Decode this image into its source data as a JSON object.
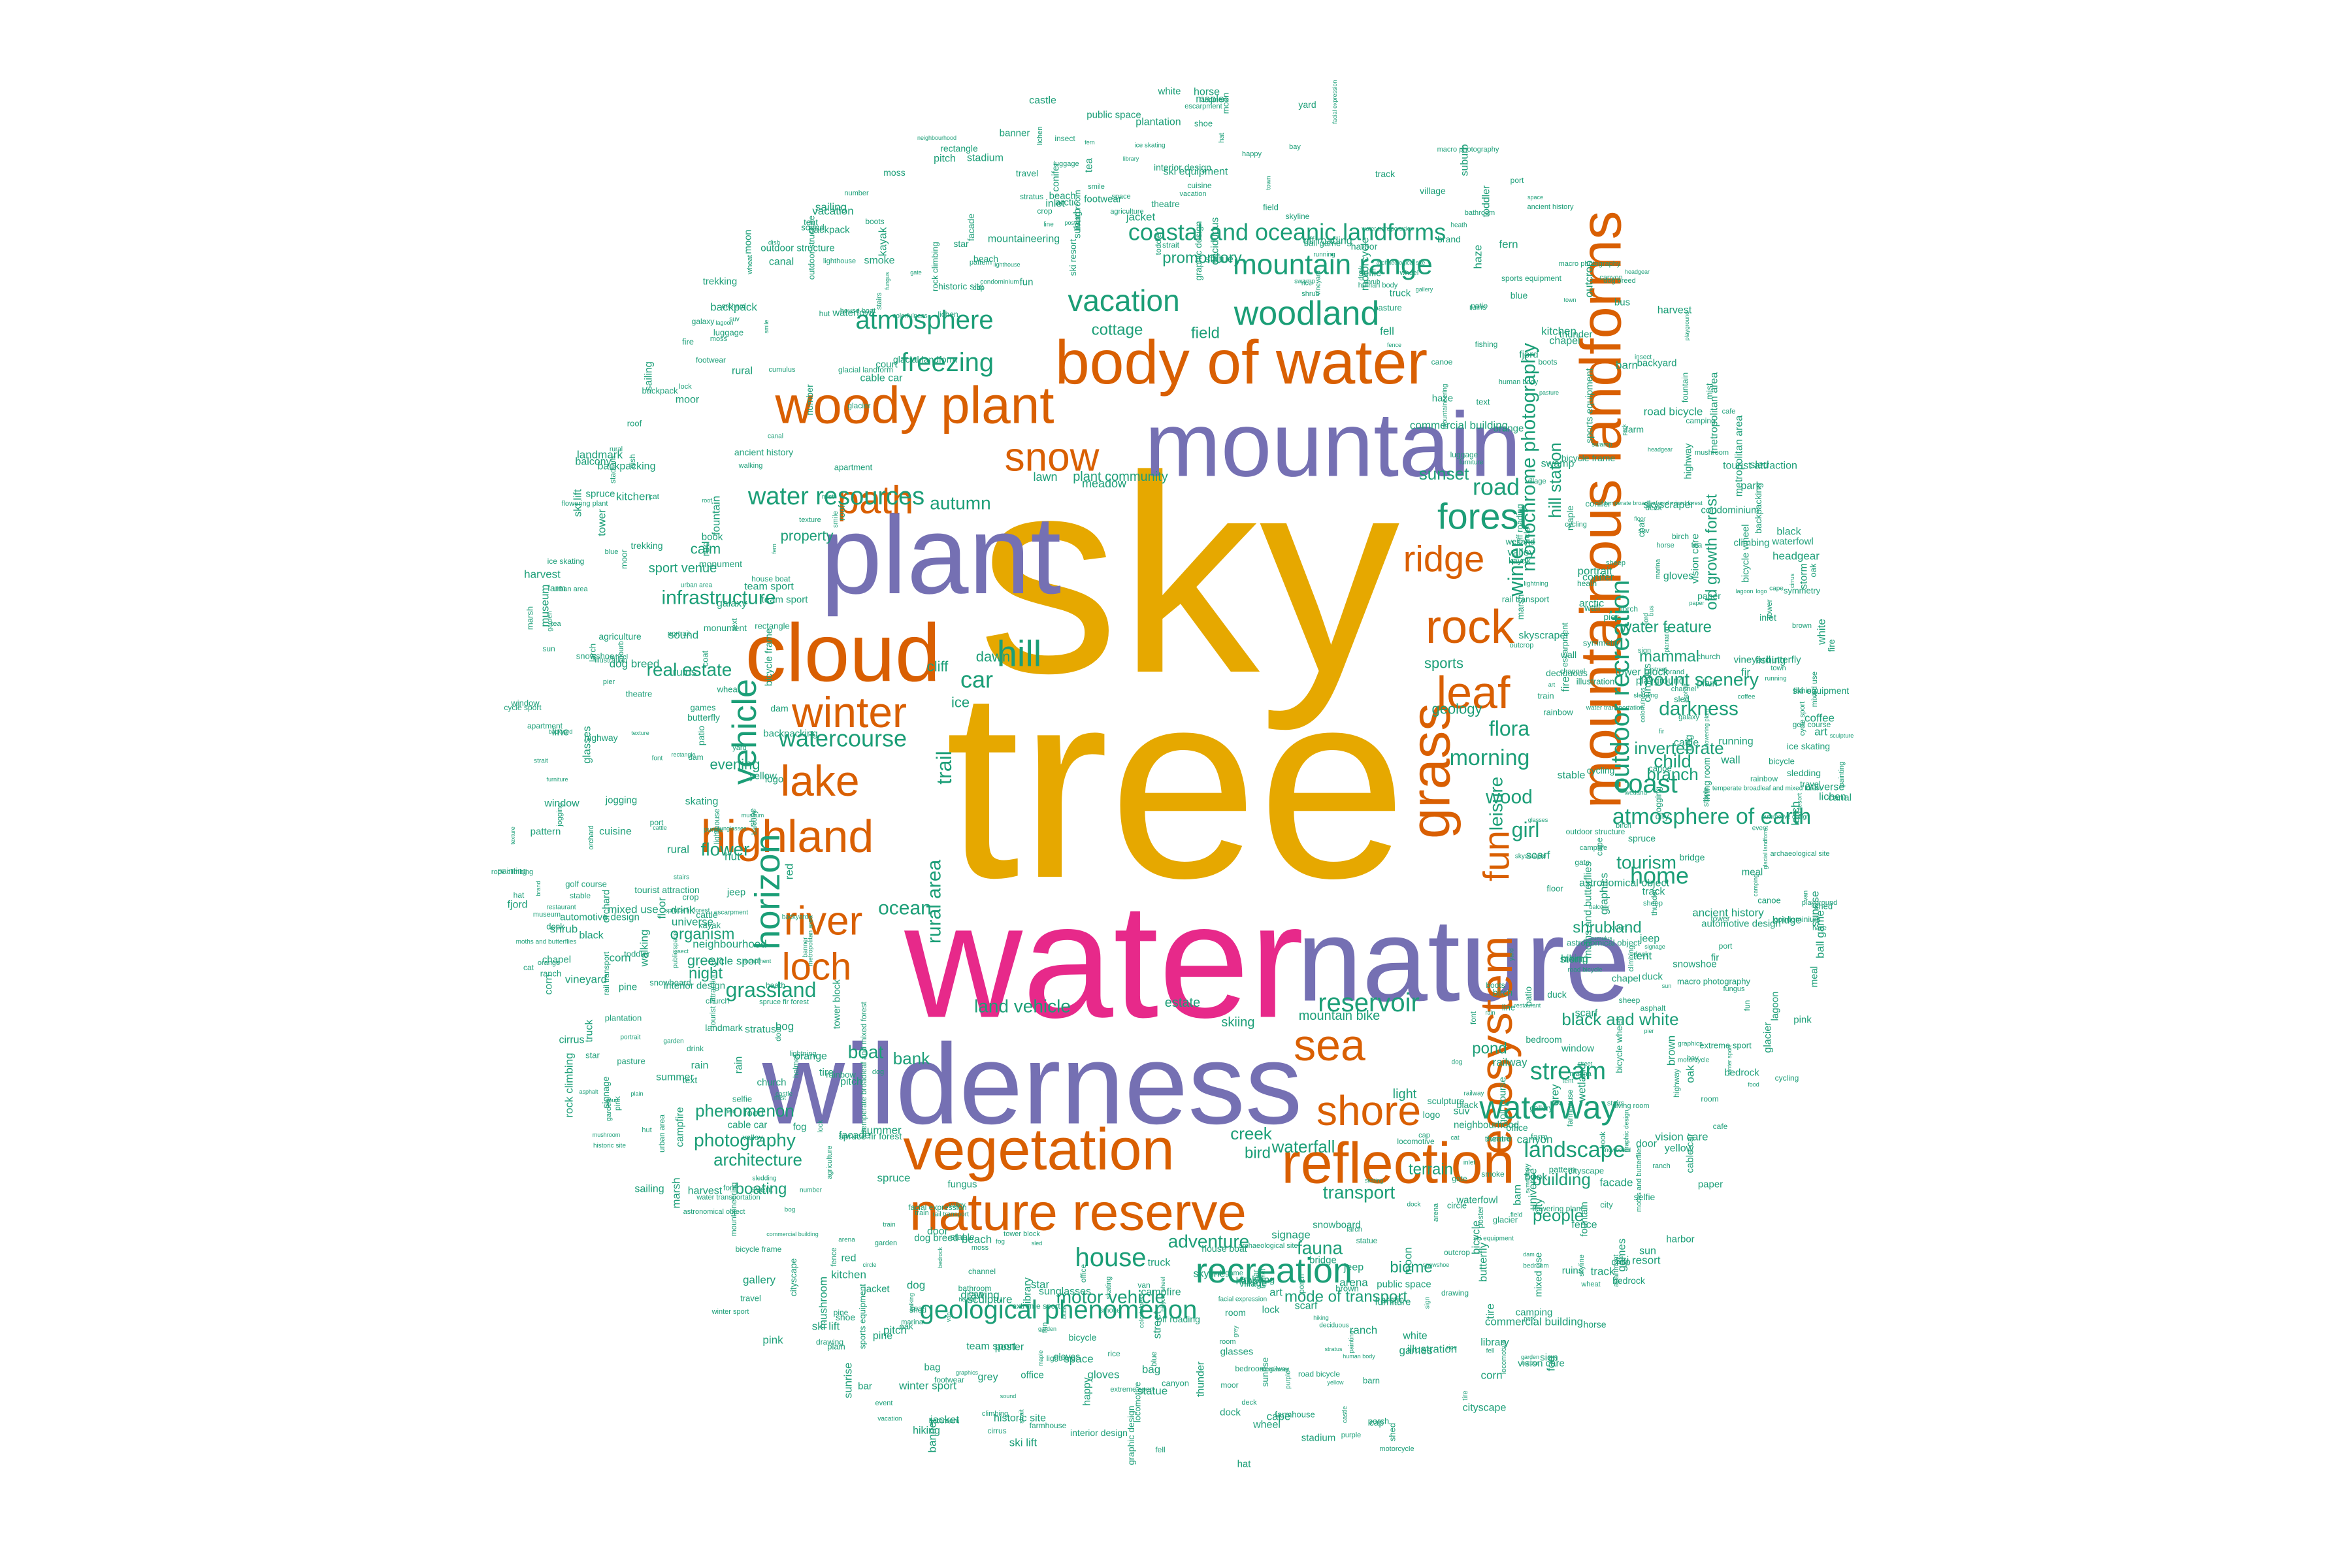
{
  "palette": {
    "gold": "#E6A800",
    "magenta": "#E7298A",
    "purple": "#7570B3",
    "orange": "#D95F02",
    "green": "#1B9E77"
  },
  "words": {
    "major": [
      {
        "text": "sky",
        "color": "gold"
      },
      {
        "text": "tree",
        "color": "gold"
      },
      {
        "text": "water",
        "color": "magenta"
      },
      {
        "text": "wilderness",
        "color": "purple"
      },
      {
        "text": "nature",
        "color": "purple"
      },
      {
        "text": "plant",
        "color": "purple"
      },
      {
        "text": "mountain",
        "color": "purple"
      },
      {
        "text": "cloud",
        "color": "orange"
      },
      {
        "text": "body of water",
        "color": "orange"
      },
      {
        "text": "woody plant",
        "color": "orange"
      },
      {
        "text": "mountainous landforms",
        "color": "orange"
      },
      {
        "text": "vegetation",
        "color": "orange"
      },
      {
        "text": "nature reserve",
        "color": "orange"
      },
      {
        "text": "reflection",
        "color": "orange"
      },
      {
        "text": "ecosystem",
        "color": "orange"
      },
      {
        "text": "grass",
        "color": "orange"
      },
      {
        "text": "highland",
        "color": "orange"
      },
      {
        "text": "lake",
        "color": "orange"
      },
      {
        "text": "winter",
        "color": "orange"
      },
      {
        "text": "river",
        "color": "orange"
      },
      {
        "text": "loch",
        "color": "orange"
      },
      {
        "text": "rock",
        "color": "orange"
      },
      {
        "text": "leaf",
        "color": "orange"
      },
      {
        "text": "sea",
        "color": "orange"
      },
      {
        "text": "shore",
        "color": "orange"
      },
      {
        "text": "snow",
        "color": "orange"
      },
      {
        "text": "path",
        "color": "orange"
      },
      {
        "text": "ridge",
        "color": "orange"
      },
      {
        "text": "fun",
        "color": "orange"
      }
    ],
    "medium": [
      "forest",
      "hill",
      "vehicle",
      "horizon",
      "woodland",
      "mountain range",
      "vacation",
      "atmosphere",
      "freezing",
      "recreation",
      "house",
      "geological phenomenon",
      "waterway",
      "reservoir",
      "stream",
      "outdoor recreation",
      "water resources",
      "watercourse",
      "car",
      "road",
      "coast",
      "atmosphere of earth",
      "coastal and oceanic landforms",
      "landscape",
      "home",
      "grassland",
      "winter",
      "morning",
      "flora",
      "wood",
      "girl",
      "leisure",
      "trail",
      "rural area",
      "ocean",
      "flower",
      "autumn",
      "infrastructure",
      "real estate",
      "photography",
      "transport",
      "fauna",
      "adventure",
      "motor vehicle",
      "creek",
      "waterfall",
      "building",
      "people",
      "tourism",
      "child",
      "branch",
      "darkness",
      "invertebrate",
      "mount scenery",
      "mammal",
      "water feature",
      "old growth forest",
      "hill station",
      "monochrome photography",
      "land vehicle",
      "boat",
      "bank",
      "phenomenon",
      "architecture",
      "boating",
      "organism",
      "green",
      "night",
      "sunset",
      "cottage",
      "field",
      "promontory",
      "mode of transport",
      "black and white",
      "shrubland",
      "biome",
      "pond",
      "terrain",
      "bird",
      "dawn",
      "ice",
      "cliff",
      "evening",
      "sports",
      "geology",
      "property",
      "calm",
      "sport venue",
      "light",
      "plant community",
      "meadow",
      "lawn",
      "estate",
      "skiing",
      "mountain bike",
      "soil"
    ],
    "small": [
      "temperate broadleaf and mixed forest",
      "sports equipment",
      "macro photography",
      "smile",
      "games",
      "neighbourhood",
      "outdoor structure",
      "facial expression",
      "glasses",
      "window",
      "road bicycle",
      "team sport",
      "human body",
      "arctic",
      "summer",
      "wetland",
      "sunrise",
      "interior design",
      "automotive design",
      "public space",
      "asphalt",
      "vision care",
      "sunglasses",
      "furniture",
      "garden",
      "toddler",
      "pasture",
      "plain",
      "headgear",
      "ball game",
      "cycle sport",
      "facade",
      "outcrop",
      "farmhouse",
      "water transportation",
      "city",
      "town",
      "street",
      "font",
      "event",
      "bridge",
      "highway",
      "tire",
      "wheel",
      "dog breed",
      "dog",
      "cat",
      "horse",
      "cattle",
      "sheep",
      "fishing",
      "camping",
      "hiking",
      "cycling",
      "sailing",
      "kayak",
      "canoe",
      "waterfowl",
      "duck",
      "insect",
      "butterfly",
      "moths and butterflies",
      "flowering plant",
      "shrub",
      "deciduous",
      "conifer",
      "spruce",
      "spruce fir forest",
      "fir",
      "pine",
      "maple",
      "oak",
      "birch",
      "larch",
      "moss",
      "fern",
      "lichen",
      "fungus",
      "mushroom",
      "bedrock",
      "escarpment",
      "canyon",
      "valley",
      "glacier",
      "glacial landform",
      "fell",
      "moor",
      "heath",
      "bog",
      "marsh",
      "swamp",
      "lagoon",
      "bay",
      "beach",
      "cape",
      "inlet",
      "fjord",
      "sound",
      "strait",
      "channel",
      "dam",
      "canal",
      "lock",
      "pier",
      "dock",
      "harbor",
      "marina",
      "port",
      "lighthouse",
      "tower",
      "castle",
      "church",
      "chapel",
      "ruins",
      "monument",
      "statue",
      "sculpture",
      "fountain",
      "park",
      "playground",
      "garden",
      "yard",
      "backyard",
      "patio",
      "deck",
      "porch",
      "balcony",
      "roof",
      "wall",
      "fence",
      "gate",
      "door",
      "stairs",
      "floor",
      "room",
      "kitchen",
      "bathroom",
      "bedroom",
      "living room",
      "office",
      "library",
      "museum",
      "gallery",
      "theatre",
      "stadium",
      "arena",
      "court",
      "track",
      "pitch",
      "golf course",
      "ski resort",
      "ski equipment",
      "snowboard",
      "sled",
      "winter sport",
      "extreme sport",
      "mountaineering",
      "climbing",
      "rock climbing",
      "backpacking",
      "trekking",
      "running",
      "walking",
      "jogging",
      "sledding",
      "skating",
      "ice skating",
      "snowshoe",
      "ski lift",
      "cable car",
      "train",
      "rail transport",
      "railway",
      "locomotive",
      "bus",
      "truck",
      "van",
      "jeep",
      "suv",
      "off roading",
      "motorcycle",
      "bicycle",
      "bicycle frame",
      "bicycle wheel",
      "helmet",
      "jacket",
      "coat",
      "hat",
      "cap",
      "scarf",
      "gloves",
      "boots",
      "shoe",
      "footwear",
      "backpack",
      "bag",
      "luggage",
      "tent",
      "campfire",
      "fire",
      "smoke",
      "fog",
      "mist",
      "haze",
      "rain",
      "storm",
      "thunder",
      "lightning",
      "rainbow",
      "cumulus",
      "stratus",
      "cirrus",
      "sun",
      "moon",
      "star",
      "astronomical object",
      "galaxy",
      "space",
      "universe",
      "blue",
      "white",
      "red",
      "yellow",
      "orange",
      "purple",
      "pink",
      "brown",
      "grey",
      "black",
      "colorfulness",
      "pattern",
      "texture",
      "symmetry",
      "line",
      "circle",
      "rectangle",
      "art",
      "painting",
      "drawing",
      "illustration",
      "graphics",
      "graphic design",
      "logo",
      "brand",
      "sign",
      "signage",
      "banner",
      "poster",
      "book",
      "paper",
      "text",
      "number",
      "portrait",
      "selfie",
      "fun",
      "happy",
      "vacation",
      "travel",
      "tourist attraction",
      "landmark",
      "historic site",
      "ancient history",
      "archaeological site",
      "village",
      "rural",
      "suburb",
      "urban area",
      "metropolitan area",
      "cityscape",
      "skyline",
      "skyscraper",
      "tower block",
      "condominium",
      "apartment",
      "mixed use",
      "commercial building",
      "house boat",
      "hut",
      "shed",
      "barn",
      "stable",
      "farm",
      "ranch",
      "vineyard",
      "orchard",
      "agriculture",
      "crop",
      "harvest",
      "field",
      "plantation",
      "tea",
      "rice",
      "wheat",
      "corn",
      "food",
      "cuisine",
      "dish",
      "meal",
      "drink",
      "coffee",
      "restaurant",
      "cafe",
      "bar"
    ]
  }
}
